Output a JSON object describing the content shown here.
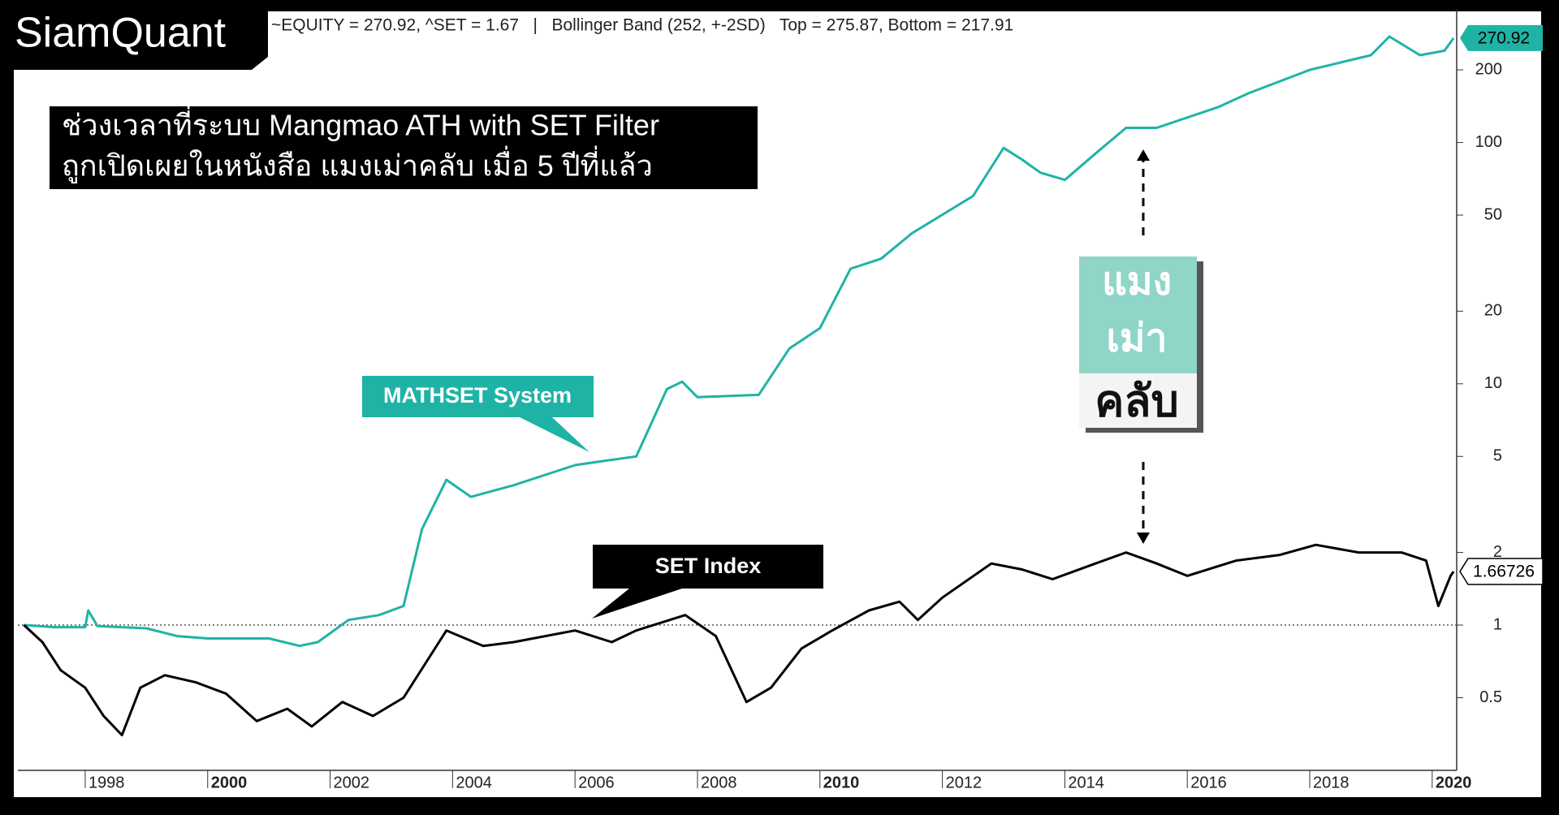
{
  "logo": "SiamQuant",
  "chart_data": {
    "type": "line",
    "header": "~EQUITY = 270.92, ^SET = 1.67   |   Bollinger Band (252, +-2SD)   Top = 275.87, Bottom = 217.91",
    "annotation": [
      "ช่วงเวลาที่ระบบ  Mangmao ATH with SET Filter",
      "ถูกเปิดเผยในหนังสือ แมงเม่าคลับ เมื่อ 5 ปีที่แล้ว"
    ],
    "book_title": [
      "แมง",
      "เม่า",
      "คลับ"
    ],
    "log_scale": true,
    "reference_line": 1,
    "xlim": [
      1996.9,
      2020.4
    ],
    "xticks": [
      1998,
      2000,
      2002,
      2004,
      2006,
      2008,
      2010,
      2012,
      2014,
      2016,
      2018,
      2020
    ],
    "ylim": [
      0.25,
      355
    ],
    "yticks": [
      0.5,
      1,
      2,
      5,
      10,
      20,
      50,
      100,
      200
    ],
    "series": [
      {
        "name": "MATHSET System",
        "color": "#1fb3a6",
        "x": [
          1997.0,
          1997.5,
          1998.0,
          1998.05,
          1998.2,
          1999.0,
          1999.5,
          2000.0,
          2001.0,
          2001.5,
          2001.8,
          2002.3,
          2002.8,
          2003.2,
          2003.5,
          2003.9,
          2004.3,
          2005.0,
          2006.0,
          2006.5,
          2007.0,
          2007.5,
          2007.75,
          2008.0,
          2009.0,
          2009.5,
          2010.0,
          2010.5,
          2011.0,
          2011.5,
          2012.5,
          2013.0,
          2013.3,
          2013.6,
          2014.0,
          2014.5,
          2015.0,
          2015.5,
          2016.5,
          2017.0,
          2018.0,
          2019.0,
          2019.3,
          2019.8,
          2020.2,
          2020.35
        ],
        "values": [
          1.0,
          0.98,
          0.98,
          1.15,
          0.99,
          0.97,
          0.9,
          0.88,
          0.88,
          0.82,
          0.85,
          1.05,
          1.1,
          1.2,
          2.5,
          4.0,
          3.4,
          3.8,
          4.6,
          4.8,
          5.0,
          9.5,
          10.2,
          8.8,
          9.0,
          14,
          17,
          30,
          33,
          42,
          60,
          95,
          85,
          75,
          70,
          90,
          115,
          115,
          140,
          160,
          200,
          230,
          275,
          230,
          240,
          270.92
        ]
      },
      {
        "name": "SET Index",
        "color": "#000000",
        "x": [
          1997.0,
          1997.3,
          1997.6,
          1998.0,
          1998.3,
          1998.6,
          1998.9,
          1999.3,
          1999.8,
          2000.3,
          2000.8,
          2001.3,
          2001.7,
          2002.2,
          2002.7,
          2003.2,
          2003.9,
          2004.5,
          2005.0,
          2006.0,
          2006.6,
          2007.0,
          2007.8,
          2008.3,
          2008.8,
          2009.2,
          2009.7,
          2010.2,
          2010.8,
          2011.3,
          2011.6,
          2012.0,
          2012.8,
          2013.3,
          2013.8,
          2014.5,
          2015.0,
          2015.5,
          2016.0,
          2016.8,
          2017.5,
          2018.1,
          2018.8,
          2019.5,
          2019.9,
          2020.1,
          2020.3,
          2020.35
        ],
        "values": [
          1.0,
          0.85,
          0.65,
          0.55,
          0.42,
          0.35,
          0.55,
          0.62,
          0.58,
          0.52,
          0.4,
          0.45,
          0.38,
          0.48,
          0.42,
          0.5,
          0.95,
          0.82,
          0.85,
          0.95,
          0.85,
          0.95,
          1.1,
          0.9,
          0.48,
          0.55,
          0.8,
          0.95,
          1.15,
          1.25,
          1.05,
          1.3,
          1.8,
          1.7,
          1.55,
          1.8,
          2.0,
          1.8,
          1.6,
          1.85,
          1.95,
          2.15,
          2.0,
          2.0,
          1.85,
          1.2,
          1.6,
          1.66726
        ]
      }
    ]
  }
}
